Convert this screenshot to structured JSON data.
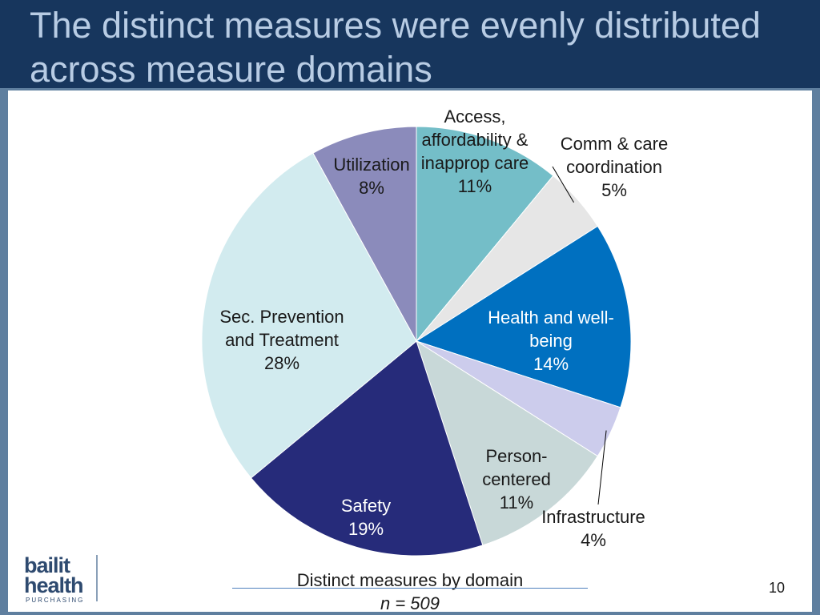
{
  "title": "The distinct measures were evenly distributed across measure domains",
  "chart_data": {
    "type": "pie",
    "title": "Distinct measures by domain",
    "subtitle": "n = 509",
    "slices": [
      {
        "name": "Access, affordability & inapprop care",
        "lines": [
          "Access,",
          "affordability &",
          "inapprop care"
        ],
        "pct_label": "11%",
        "value": 11,
        "color": "#74bec8"
      },
      {
        "name": "Comm & care coordination",
        "lines": [
          "Comm & care",
          "coordination"
        ],
        "pct_label": "5%",
        "value": 5,
        "color": "#e6e6e6"
      },
      {
        "name": "Health and well-being",
        "lines": [
          "Health and well-",
          "being"
        ],
        "pct_label": "14%",
        "value": 14,
        "color": "#0070c0"
      },
      {
        "name": "Infrastructure",
        "lines": [
          "Infrastructure"
        ],
        "pct_label": "4%",
        "value": 4,
        "color": "#ccccec"
      },
      {
        "name": "Person-centered",
        "lines": [
          "Person-",
          "centered"
        ],
        "pct_label": "11%",
        "value": 11,
        "color": "#c8d8d8"
      },
      {
        "name": "Safety",
        "lines": [
          "Safety"
        ],
        "pct_label": "19%",
        "value": 19,
        "color": "#262b7a"
      },
      {
        "name": "Sec. Prevention and Treatment",
        "lines": [
          "Sec. Prevention",
          "and Treatment"
        ],
        "pct_label": "28%",
        "value": 28,
        "color": "#d2ebef"
      },
      {
        "name": "Utilization",
        "lines": [
          "Utilization"
        ],
        "pct_label": "8%",
        "value": 8,
        "color": "#8b8bbb"
      }
    ]
  },
  "logo": {
    "word1": "bailit",
    "word2": "health",
    "sub": "PURCHASING"
  },
  "page_number": "10"
}
